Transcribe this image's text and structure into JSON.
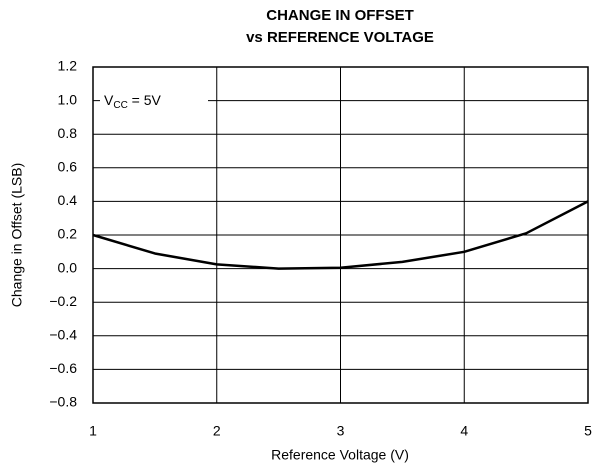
{
  "chart_data": {
    "type": "line",
    "title": [
      "CHANGE IN OFFSET",
      "vs REFERENCE VOLTAGE"
    ],
    "xlabel": "Reference Voltage (V)",
    "ylabel": "Change in Offset (LSB)",
    "annotation": [
      "V",
      "CC",
      " = 5V"
    ],
    "x": [
      1,
      1.5,
      2,
      2.5,
      3,
      3.5,
      4,
      4.5,
      5
    ],
    "series": [
      {
        "color": "#000000",
        "values": [
          0.2,
          0.09,
          0.025,
          0,
          0.005,
          0.04,
          0.1,
          0.21,
          0.4
        ]
      }
    ],
    "xlim": [
      1,
      5
    ],
    "xticks": [
      1,
      2,
      3,
      4,
      5
    ],
    "ylim": [
      -0.8,
      1.2
    ],
    "yticks": [
      {
        "value": -0.8,
        "label": "−0.8"
      },
      {
        "value": -0.6,
        "label": "−0.6"
      },
      {
        "value": -0.4,
        "label": "−0.4"
      },
      {
        "value": -0.2,
        "label": "−0.2"
      },
      {
        "value": 0,
        "label": "0.0"
      },
      0.2,
      0.4,
      0.6,
      0.8,
      {
        "value": 1,
        "label": "1.0"
      },
      1.2
    ],
    "grid": true
  }
}
